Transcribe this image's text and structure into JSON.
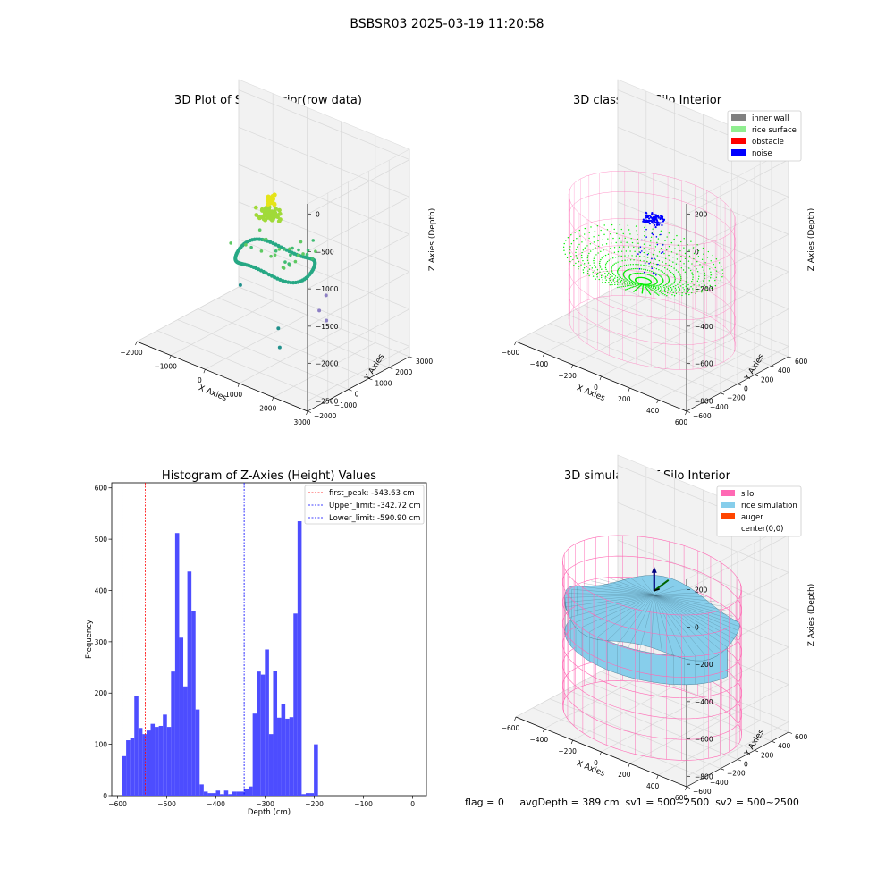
{
  "figure": {
    "suptitle": "BSBSR03 2025-03-19 11:20:58"
  },
  "colors": {
    "inner_wall": "#808080",
    "rice_surface": "#90ee90",
    "rice_points": "#00ee00",
    "obstacle": "#ff0000",
    "noise": "#0000ff",
    "silo": "#ff69b4",
    "rice_simulation": "#87ceeb",
    "auger": "#ff4500",
    "hist_bar": "#4d4dff",
    "first_peak": "#ff0000",
    "limits": "#0000ff",
    "pane": "#f2f2f2"
  },
  "chart_data": [
    {
      "type": "scatter",
      "dims": 3,
      "title": "3D Plot of Silo Interior(row data)",
      "xlabel": "X Axies",
      "ylabel": "Y Axies",
      "zlabel": "Z Axies (Depth)",
      "xlim": [
        -2000,
        3000
      ],
      "ylim": [
        -2000,
        3000
      ],
      "zlim": [
        -2600,
        100
      ],
      "x_ticks": [
        "−2000",
        "−1000",
        "0",
        "1000",
        "2000",
        "3000"
      ],
      "y_ticks": [
        "−2000",
        "−1000",
        "0",
        "1000",
        "2000",
        "3000"
      ],
      "z_ticks": [
        "0",
        "−500",
        "−1000",
        "−1500",
        "−2000",
        "−2500"
      ],
      "colormap": "viridis"
    },
    {
      "type": "scatter",
      "dims": 3,
      "title": "3D classify of Silo Interior",
      "xlabel": "X Axies",
      "ylabel": "Y Axies",
      "zlabel": "Z Axies (Depth)",
      "xlim": [
        -600,
        600
      ],
      "ylim": [
        -600,
        600
      ],
      "zlim": [
        -900,
        300
      ],
      "x_ticks": [
        "−600",
        "−400",
        "−200",
        "0",
        "200",
        "400",
        "600"
      ],
      "y_ticks": [
        "−600",
        "−400",
        "−200",
        "0",
        "200",
        "400",
        "600"
      ],
      "z_ticks": [
        "200",
        "0",
        "−200",
        "−400",
        "−600",
        "−800"
      ],
      "legend": [
        "inner wall",
        "rice surface",
        "obstacle",
        "noise"
      ],
      "legend_position": "top-right"
    },
    {
      "type": "bar",
      "title": "Histogram of Z-Axies (Height) Values",
      "xlabel": "Depth (cm)",
      "ylabel": "Frequency",
      "xlim": [
        -612,
        28
      ],
      "ylim": [
        0,
        610
      ],
      "x_ticks": [
        -600,
        -500,
        -400,
        -300,
        -200,
        -100,
        0
      ],
      "x_tick_labels": [
        "−600",
        "−500",
        "−400",
        "−300",
        "−200",
        "−100",
        "0"
      ],
      "y_ticks": [
        0,
        100,
        200,
        300,
        400,
        500,
        600
      ],
      "bin_start": -591,
      "bin_width": 8.3,
      "values": [
        77,
        108,
        112,
        195,
        132,
        120,
        127,
        140,
        134,
        136,
        158,
        134,
        242,
        512,
        308,
        213,
        437,
        360,
        168,
        22,
        8,
        5,
        5,
        10,
        3,
        10,
        3,
        8,
        8,
        8,
        14,
        18,
        160,
        242,
        236,
        285,
        120,
        243,
        152,
        178,
        150,
        153,
        355,
        535,
        3,
        5,
        5,
        100
      ],
      "vlines": [
        {
          "label": "first_peak: -543.63 cm",
          "x": -543.63,
          "color": "red"
        },
        {
          "label": "Upper_limit: -342.72 cm",
          "x": -342.72,
          "color": "blue"
        },
        {
          "label": "Lower_limit: -590.90 cm",
          "x": -590.9,
          "color": "blue"
        }
      ],
      "legend_position": "top-right"
    },
    {
      "type": "surface",
      "dims": 3,
      "title": "3D simulation of Silo Interior",
      "xlabel": "X Axies",
      "ylabel": "Y Axies",
      "zlabel": "Z Axies (Depth)",
      "xlim": [
        -600,
        600
      ],
      "ylim": [
        -600,
        600
      ],
      "zlim": [
        -900,
        300
      ],
      "x_ticks": [
        "−600",
        "−400",
        "−200",
        "0",
        "200",
        "400",
        "600"
      ],
      "y_ticks": [
        "−600",
        "−400",
        "−200",
        "0",
        "200",
        "400",
        "600"
      ],
      "z_ticks": [
        "200",
        "0",
        "−200",
        "−400",
        "−600",
        "−800"
      ],
      "legend": [
        "silo",
        "rice simulation",
        "auger",
        "center(0,0)"
      ],
      "legend_position": "top-right"
    }
  ],
  "status_line": "flag = 0     avgDepth = 389 cm  sv1 = 500~2500  sv2 = 500~2500"
}
